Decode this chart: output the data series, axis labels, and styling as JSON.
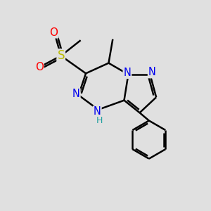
{
  "background_color": "#e0e0e0",
  "atom_colors": {
    "N": "#0000ee",
    "S": "#bbbb00",
    "O": "#ff0000",
    "C": "#000000"
  },
  "bond_color": "#000000",
  "bond_width": 1.8,
  "figsize": [
    3.0,
    3.0
  ],
  "dpi": 100
}
